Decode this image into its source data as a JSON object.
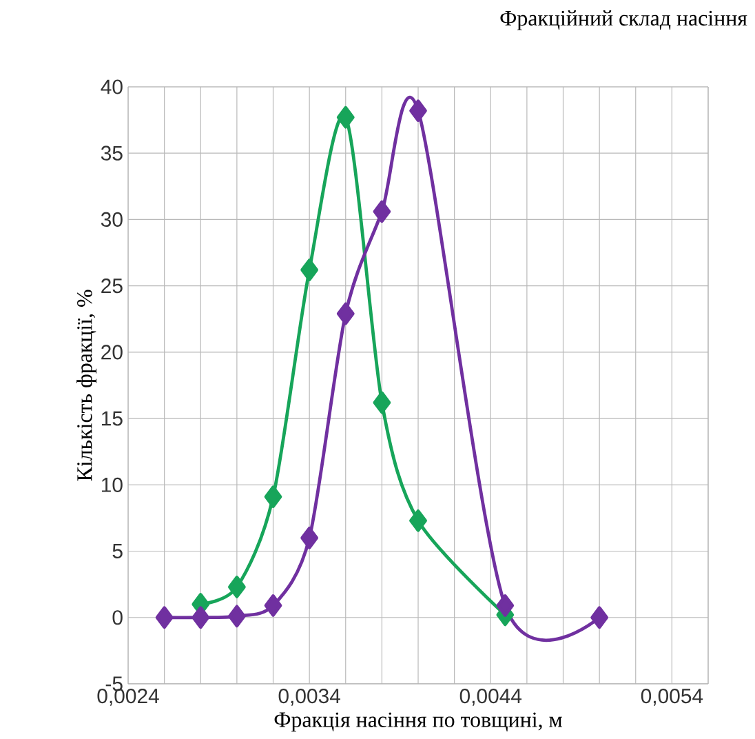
{
  "chart_data": {
    "type": "line",
    "title": "Фракційний склад насіння",
    "xlabel": "Фракція насіння по товщині, м",
    "ylabel": "Кількість фракції, %",
    "series": [
      {
        "color": "#17a55a",
        "x": [
          0.0028,
          0.003,
          0.0032,
          0.0034,
          0.0036,
          0.0038,
          0.004,
          0.00448
        ],
        "values": [
          1.0,
          2.3,
          9.1,
          26.2,
          37.7,
          16.2,
          7.3,
          0.2
        ]
      },
      {
        "color": "#7030a0",
        "x": [
          0.0026,
          0.0028,
          0.003,
          0.0032,
          0.0034,
          0.0036,
          0.0038,
          0.004,
          0.00448,
          0.005
        ],
        "values": [
          0,
          0,
          0.1,
          0.9,
          6.0,
          22.9,
          30.6,
          38.2,
          0.9,
          0
        ]
      }
    ],
    "xlim": [
      0.0024,
      0.0056
    ],
    "xticks": [
      {
        "value": 0.0024,
        "label": "0,0024"
      },
      {
        "value": 0.0026,
        "label": null
      },
      {
        "value": 0.0028,
        "label": null
      },
      {
        "value": 0.003,
        "label": null
      },
      {
        "value": 0.0032,
        "label": null
      },
      {
        "value": 0.0034,
        "label": "0,0034"
      },
      {
        "value": 0.0036,
        "label": null
      },
      {
        "value": 0.0038,
        "label": null
      },
      {
        "value": 0.004,
        "label": null
      },
      {
        "value": 0.0042,
        "label": null
      },
      {
        "value": 0.0044,
        "label": "0,0044"
      },
      {
        "value": 0.0046,
        "label": null
      },
      {
        "value": 0.0048,
        "label": null
      },
      {
        "value": 0.005,
        "label": null
      },
      {
        "value": 0.0052,
        "label": null
      },
      {
        "value": 0.0054,
        "label": "0,0054"
      },
      {
        "value": 0.0056,
        "label": null
      }
    ],
    "ylim": [
      -5,
      40
    ],
    "yticks": [
      -5,
      0,
      5,
      10,
      15,
      20,
      25,
      30,
      35,
      40
    ],
    "grid": true,
    "marker": "diamond",
    "line_style": "solid"
  }
}
